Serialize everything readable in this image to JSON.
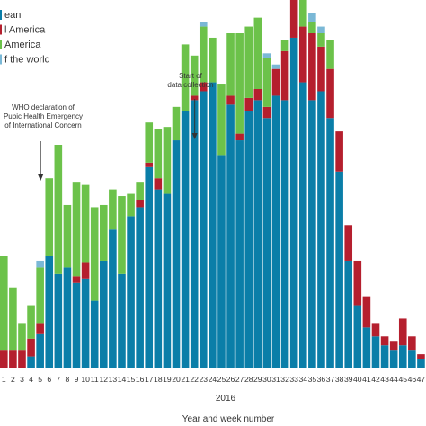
{
  "chart_data": {
    "type": "bar",
    "stacked": true,
    "xlabel": "Year and week number",
    "year_label": "2016",
    "categories": [
      "1",
      "2",
      "3",
      "4",
      "5",
      "6",
      "7",
      "8",
      "9",
      "10",
      "11",
      "12",
      "13",
      "14",
      "15",
      "16",
      "17",
      "18",
      "19",
      "20",
      "21",
      "22",
      "23",
      "24",
      "25",
      "26",
      "27",
      "28",
      "29",
      "30",
      "31",
      "32",
      "33",
      "34",
      "35",
      "36",
      "37",
      "38",
      "39",
      "40",
      "41",
      "42",
      "43",
      "44",
      "45",
      "46",
      "47"
    ],
    "series": [
      {
        "name": "…ean",
        "color": "#0a7ea8",
        "values": [
          0,
          0,
          0,
          5,
          15,
          50,
          42,
          45,
          38,
          40,
          30,
          48,
          62,
          42,
          68,
          72,
          90,
          80,
          78,
          102,
          115,
          120,
          124,
          128,
          95,
          118,
          102,
          115,
          120,
          112,
          122,
          120,
          148,
          128,
          120,
          124,
          112,
          88,
          48,
          28,
          18,
          14,
          10,
          8,
          10,
          8,
          4
        ]
      },
      {
        "name": "…l America",
        "color": "#b51f2e",
        "values": [
          8,
          8,
          8,
          8,
          5,
          0,
          0,
          0,
          3,
          7,
          0,
          0,
          0,
          0,
          0,
          3,
          2,
          5,
          0,
          0,
          0,
          2,
          4,
          0,
          0,
          4,
          3,
          6,
          5,
          5,
          12,
          22,
          35,
          25,
          30,
          20,
          22,
          18,
          16,
          20,
          14,
          6,
          4,
          4,
          12,
          6,
          2
        ]
      },
      {
        "name": "…America",
        "color": "#6cc24a",
        "values": [
          42,
          28,
          12,
          15,
          25,
          35,
          58,
          28,
          42,
          35,
          42,
          25,
          18,
          35,
          10,
          8,
          18,
          22,
          30,
          15,
          30,
          18,
          25,
          20,
          32,
          28,
          45,
          32,
          32,
          22,
          0,
          5,
          6,
          15,
          5,
          6,
          13,
          0,
          0,
          0,
          0,
          0,
          0,
          0,
          0,
          0,
          0
        ]
      },
      {
        "name": "…f the world",
        "color": "#7ab8d6",
        "values": [
          0,
          0,
          0,
          0,
          3,
          0,
          0,
          0,
          0,
          0,
          0,
          0,
          0,
          0,
          0,
          0,
          0,
          0,
          0,
          0,
          0,
          0,
          2,
          0,
          0,
          0,
          0,
          0,
          0,
          2,
          2,
          0,
          5,
          10,
          4,
          3,
          0,
          0,
          0,
          0,
          0,
          0,
          0,
          0,
          0,
          0,
          0
        ]
      }
    ],
    "annotations": [
      {
        "text_lines": [
          "WHO declaration of",
          "Pubic Health Emergency",
          "of International Concern"
        ],
        "at_week": "5"
      },
      {
        "text_lines": [
          "Start of",
          "data collection"
        ],
        "at_week": "22"
      }
    ]
  }
}
